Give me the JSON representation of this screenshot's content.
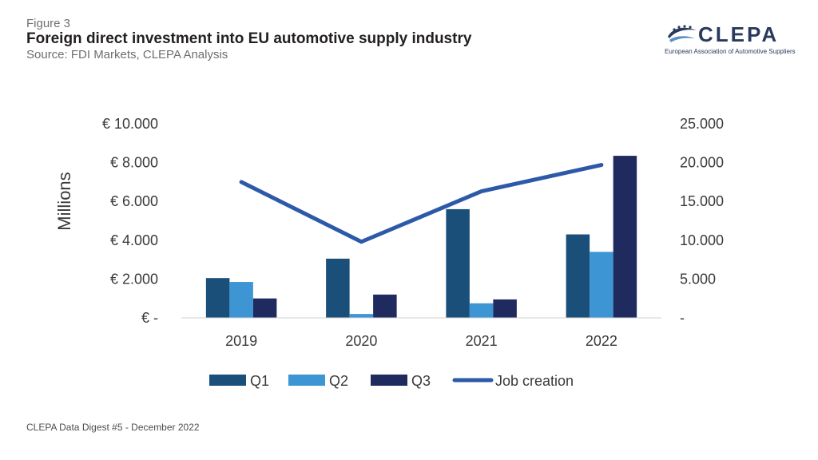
{
  "header": {
    "figure_label": "Figure 3",
    "title": "Foreign direct investment into EU automotive supply industry",
    "source": "Source: FDI Markets, CLEPA Analysis"
  },
  "logo": {
    "name": "CLEPA",
    "subtitle": "European Association of Automotive Suppliers",
    "icon": "clepa-swoosh-stars-logo",
    "color": "#2a3a5c"
  },
  "footer": {
    "text": "CLEPA Data Digest #5 - December 2022"
  },
  "chart_data": {
    "type": "bar",
    "categories": [
      "2019",
      "2020",
      "2021",
      "2022"
    ],
    "ylabel": "Millions",
    "ylim": [
      0,
      10000
    ],
    "y_ticks": [
      "€ -",
      "€ 2.000",
      "€ 4.000",
      "€ 6.000",
      "€ 8.000",
      "€ 10.000"
    ],
    "y2lim": [
      0,
      25000
    ],
    "y2_ticks": [
      "-",
      "5.000",
      "10.000",
      "15.000",
      "20.000",
      "25.000"
    ],
    "grid": false,
    "legend_position": "bottom",
    "series": [
      {
        "name": "Q1",
        "type": "bar",
        "axis": "left",
        "color": "#1a4f7a",
        "values": [
          2050,
          3050,
          5600,
          4300
        ]
      },
      {
        "name": "Q2",
        "type": "bar",
        "axis": "left",
        "color": "#3d95d4",
        "values": [
          1850,
          200,
          750,
          3400
        ]
      },
      {
        "name": "Q3",
        "type": "bar",
        "axis": "left",
        "color": "#1f2b5e",
        "values": [
          1000,
          1200,
          950,
          8350
        ]
      },
      {
        "name": "Job creation",
        "type": "line",
        "axis": "right",
        "color": "#2d5aa8",
        "values": [
          17500,
          9800,
          16300,
          19700
        ]
      }
    ]
  }
}
